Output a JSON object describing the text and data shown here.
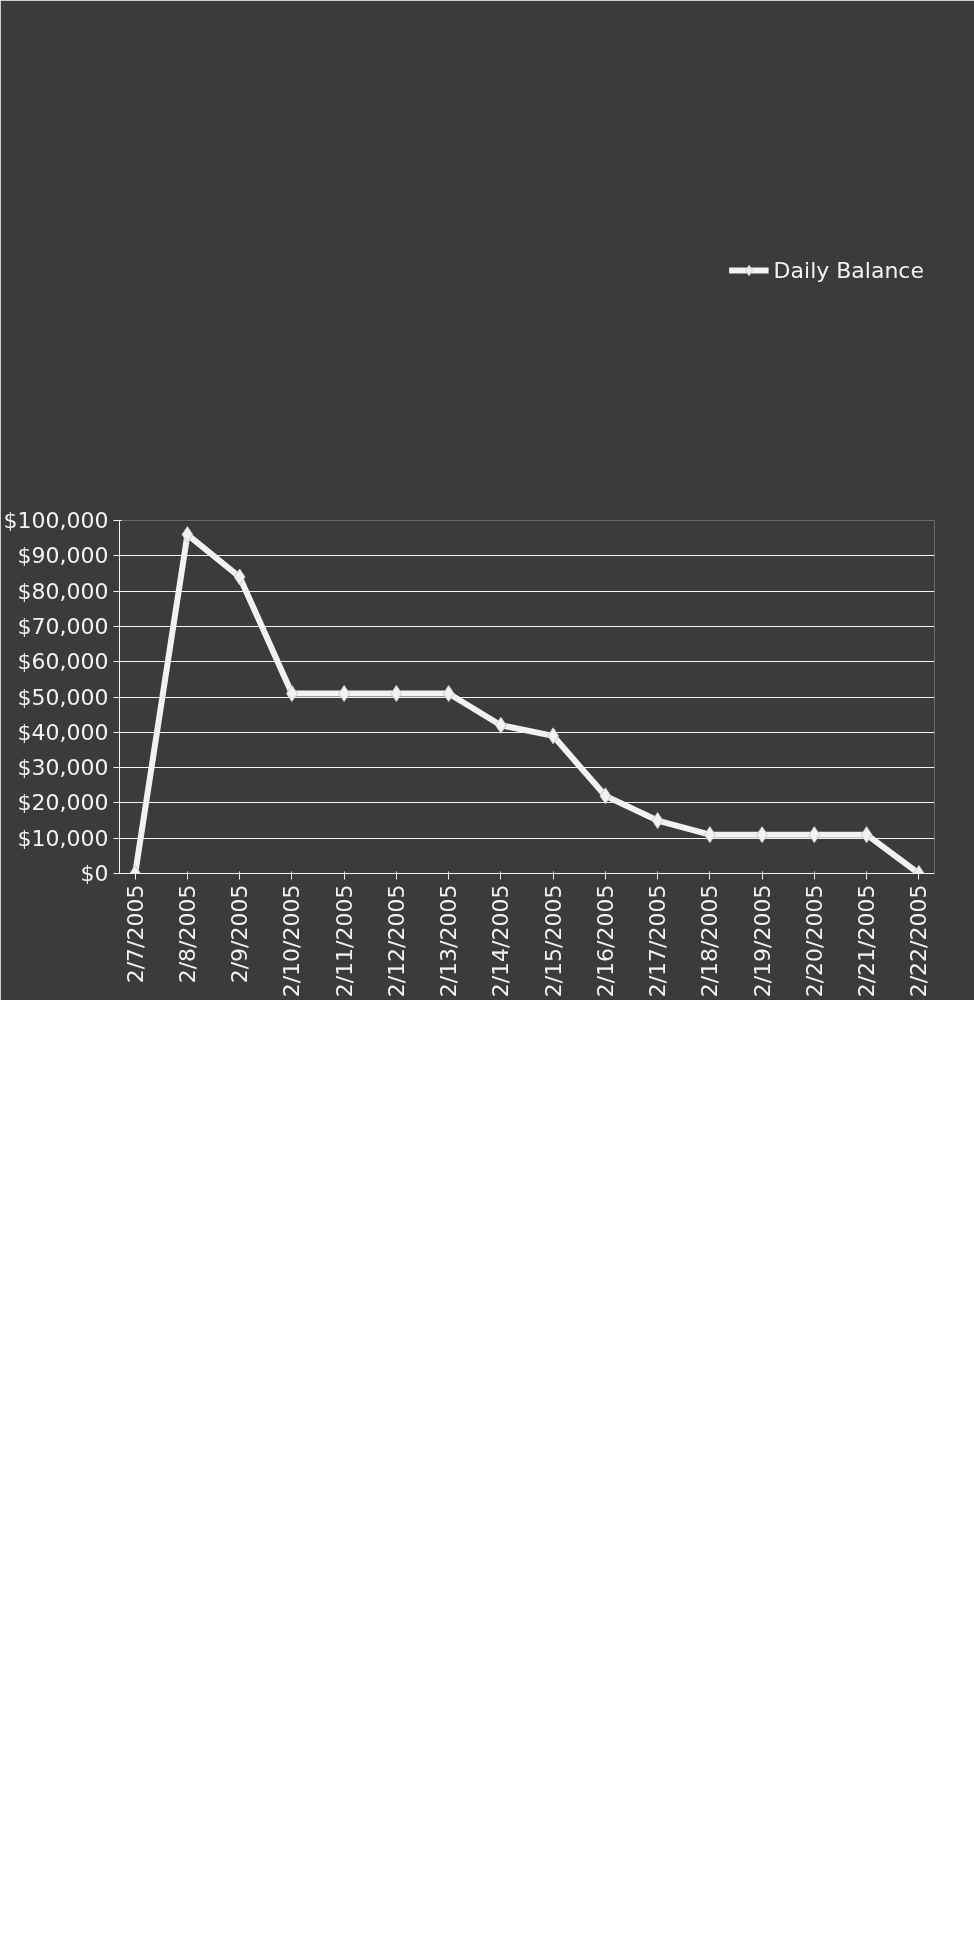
{
  "chart_data": {
    "type": "line",
    "categories": [
      "2/7/2005",
      "2/8/2005",
      "2/9/2005",
      "2/10/2005",
      "2/11/2005",
      "2/12/2005",
      "2/13/2005",
      "2/14/2005",
      "2/15/2005",
      "2/16/2005",
      "2/17/2005",
      "2/18/2005",
      "2/19/2005",
      "2/20/2005",
      "2/21/2005",
      "2/22/2005"
    ],
    "series": [
      {
        "name": "Daily Balance",
        "color": "#f2f2f2",
        "values": [
          0,
          96000,
          84000,
          51000,
          51000,
          51000,
          51000,
          42000,
          39000,
          22000,
          15000,
          11000,
          11000,
          11000,
          11000,
          0
        ]
      }
    ],
    "ylim": [
      0,
      100000
    ],
    "yticks": [
      {
        "value": 0,
        "label": "$0"
      },
      {
        "value": 10000,
        "label": "$10,000"
      },
      {
        "value": 20000,
        "label": "$20,000"
      },
      {
        "value": 30000,
        "label": "$30,000"
      },
      {
        "value": 40000,
        "label": "$40,000"
      },
      {
        "value": 50000,
        "label": "$50,000"
      },
      {
        "value": 60000,
        "label": "$60,000"
      },
      {
        "value": 70000,
        "label": "$70,000"
      },
      {
        "value": 80000,
        "label": "$80,000"
      },
      {
        "value": 90000,
        "label": "$90,000"
      },
      {
        "value": 100000,
        "label": "$100,000"
      }
    ],
    "grid": "y",
    "legend": "top",
    "marker": "diamond",
    "line_style": "solid"
  }
}
